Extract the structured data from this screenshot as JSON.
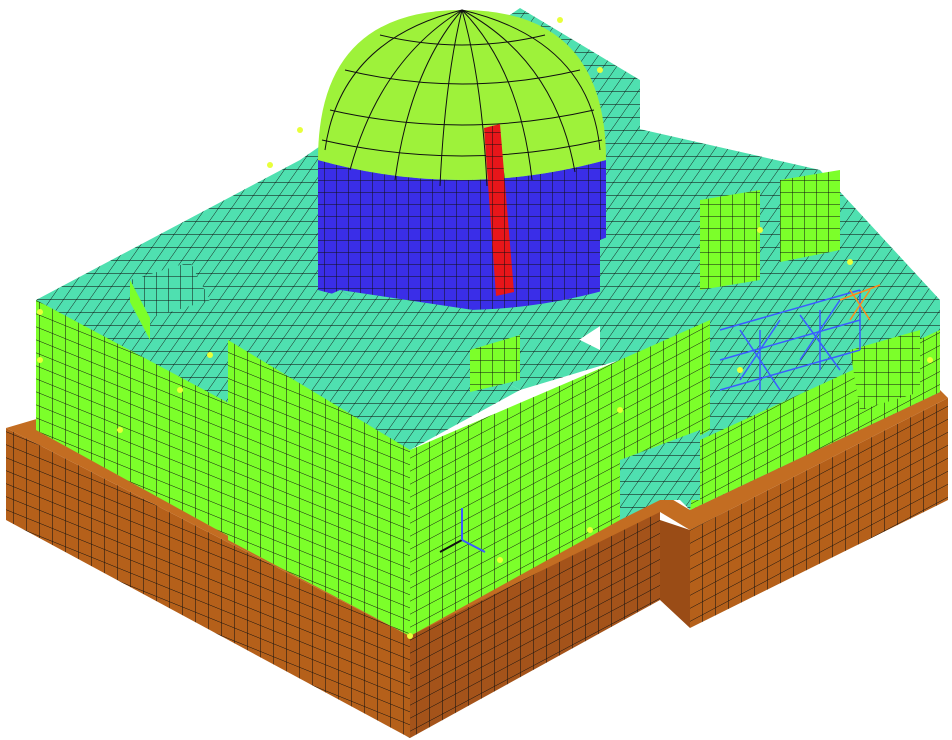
{
  "model": {
    "description_visible_text": "",
    "colors": {
      "soil_foundation": "#b5601a",
      "structure_wall_light": "#7cff2a",
      "structure_roof_cyan": "#4fe0b0",
      "dome_cap": "#9ef23a",
      "dome_band": "#3a2ee8",
      "dome_stripe": "#e8161a",
      "mesh_lines": "#101010",
      "constraint_marks": "#e8ff3a",
      "truss_blue": "#3a5cff",
      "truss_orange": "#ff8a1a",
      "background": "#ffffff"
    },
    "components": [
      "soil-foundation-slab",
      "main-building-block",
      "containment-dome",
      "dome-cylinder-band",
      "dome-red-stripe",
      "front-annex-block",
      "right-annex-block",
      "steel-truss-frame",
      "coordinate-triad"
    ]
  }
}
